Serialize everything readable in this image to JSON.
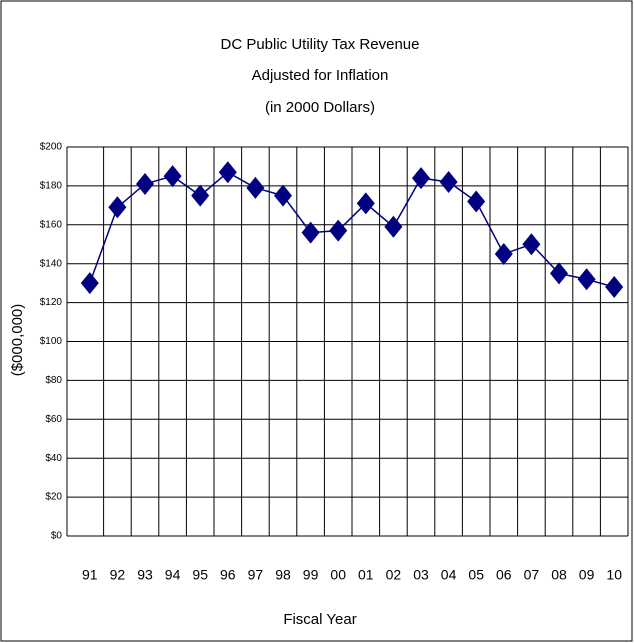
{
  "chart_data": {
    "type": "line",
    "title": "DC Public Utility Tax Revenue",
    "subtitle": [
      "Adjusted for Inflation",
      "(in 2000 Dollars)"
    ],
    "x_label": "Fiscal Year",
    "y_label": "($000,000)",
    "categories": [
      "91",
      "92",
      "93",
      "94",
      "95",
      "96",
      "97",
      "98",
      "99",
      "00",
      "01",
      "02",
      "03",
      "04",
      "05",
      "06",
      "07",
      "08",
      "09",
      "10"
    ],
    "series": [
      {
        "color": "#000080",
        "values": [
          130,
          169,
          181,
          185,
          175,
          187,
          179,
          175,
          156,
          157,
          171,
          159,
          184,
          182,
          172,
          145,
          150,
          135,
          132,
          128
        ]
      }
    ],
    "ylim": [
      0,
      200
    ],
    "yticks": [
      {
        "value": 0,
        "label": "$0"
      },
      {
        "value": 20,
        "label": "$20"
      },
      {
        "value": 40,
        "label": "$40"
      },
      {
        "value": 60,
        "label": "$60"
      },
      {
        "value": 80,
        "label": "$80"
      },
      {
        "value": 100,
        "label": "$100"
      },
      {
        "value": 120,
        "label": "$120"
      },
      {
        "value": 140,
        "label": "$140"
      },
      {
        "value": 160,
        "label": "$160"
      },
      {
        "value": 180,
        "label": "$180"
      },
      {
        "value": 200,
        "label": "$200"
      }
    ],
    "grid": true
  }
}
